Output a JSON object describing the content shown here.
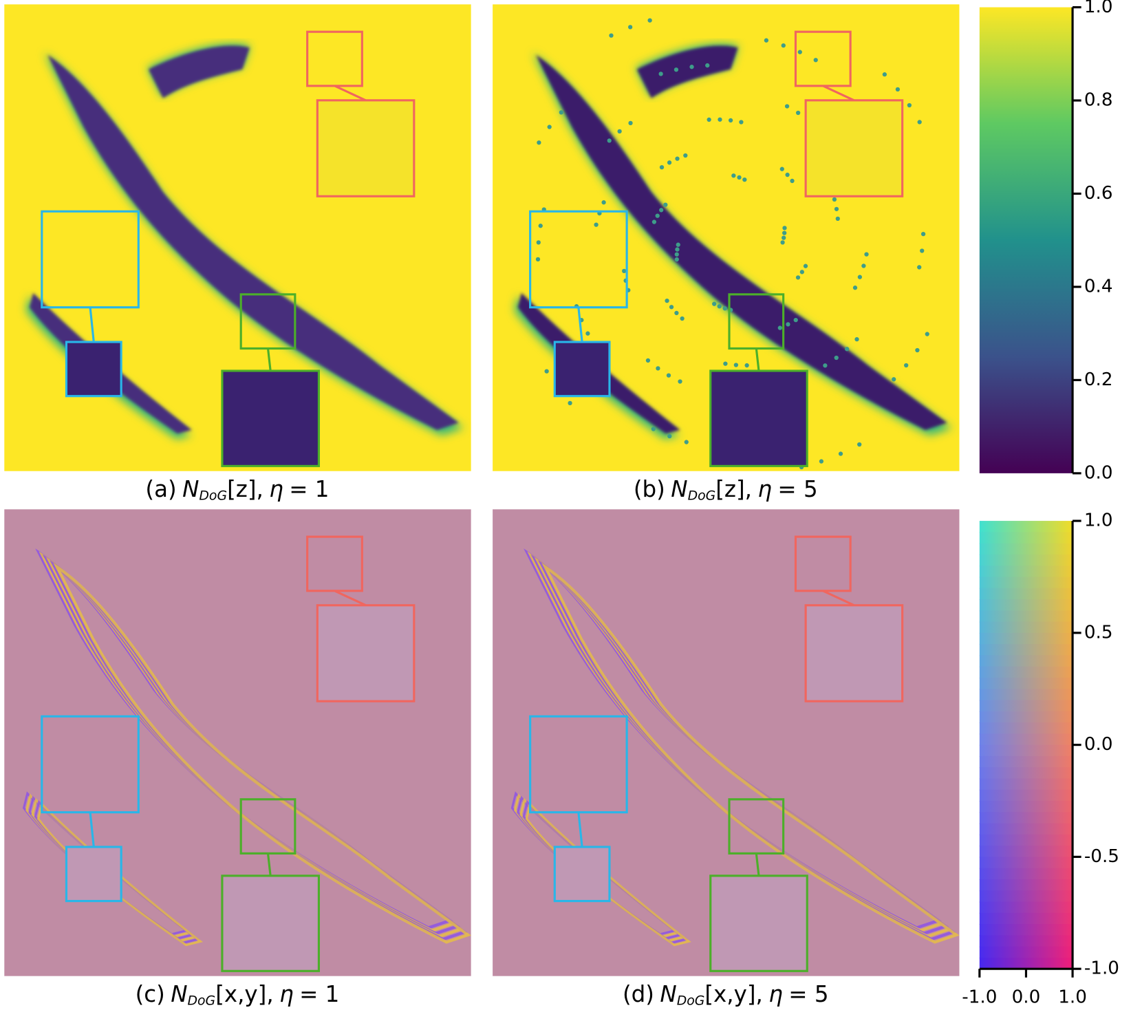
{
  "panels": [
    {
      "label": "(a)",
      "symbol": "N",
      "subscript": "DoG",
      "argument": "[z],",
      "parameter": "η",
      "setting": "= 1"
    },
    {
      "label": "(b)",
      "symbol": "N",
      "subscript": "DoG",
      "argument": "[z],",
      "parameter": "η",
      "setting": "= 5"
    },
    {
      "label": "(c)",
      "symbol": "N",
      "subscript": "DoG",
      "argument": "[x,y],",
      "parameter": "η",
      "setting": "= 1"
    },
    {
      "label": "(d)",
      "symbol": "N",
      "subscript": "DoG",
      "argument": "[x,y],",
      "parameter": "η",
      "setting": "= 5"
    }
  ],
  "colorbars": [
    {
      "ylim": [
        0,
        1
      ],
      "yticks": [
        {
          "value": 0,
          "label": "0.0"
        },
        {
          "value": 0.2,
          "label": "0.2"
        },
        {
          "value": 0.4,
          "label": "0.4"
        },
        {
          "value": 0.6,
          "label": "0.6"
        },
        {
          "value": 0.8,
          "label": "0.8"
        },
        {
          "value": 1,
          "label": "1.0"
        }
      ]
    },
    {
      "ylim": [
        -1,
        1
      ],
      "yticks": [
        {
          "value": -1,
          "label": "-1.0"
        },
        {
          "value": -0.5,
          "label": "-0.5"
        },
        {
          "value": 0,
          "label": "0.0"
        },
        {
          "value": 0.5,
          "label": "0.5"
        },
        {
          "value": 1,
          "label": "1.0"
        }
      ],
      "xlim": [
        -1,
        1
      ],
      "xticks": [
        {
          "value": -1,
          "label": "-1.0"
        },
        {
          "value": 0,
          "label": "0.0"
        },
        {
          "value": 1,
          "label": "1.0"
        }
      ]
    }
  ]
}
